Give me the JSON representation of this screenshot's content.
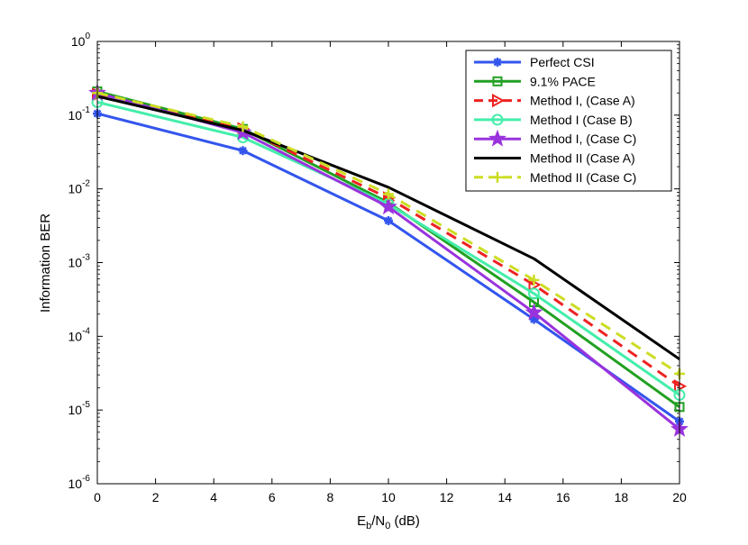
{
  "chart_data": {
    "type": "line",
    "title": "",
    "xlabel": {
      "base": "E",
      "sub1": "b",
      "mid": "/N",
      "sub2": "0",
      "tail": " (dB)"
    },
    "ylabel": "Information BER",
    "xlim": [
      0,
      20
    ],
    "ylim_log10": [
      -6,
      0
    ],
    "yscale": "log",
    "grid": false,
    "x_ticks": [
      0,
      2,
      4,
      6,
      8,
      10,
      12,
      14,
      16,
      18,
      20
    ],
    "y_ticks": [
      {
        "base": "10",
        "exp": "0"
      },
      {
        "base": "10",
        "exp": "-1"
      },
      {
        "base": "10",
        "exp": "-2"
      },
      {
        "base": "10",
        "exp": "-3"
      },
      {
        "base": "10",
        "exp": "-4"
      },
      {
        "base": "10",
        "exp": "-5"
      },
      {
        "base": "10",
        "exp": "-6"
      }
    ],
    "legend_position": "top-right",
    "series": [
      {
        "name": "Perfect CSI",
        "color": "#3355ee",
        "dash": "solid",
        "marker": "asterisk",
        "x": [
          0,
          5,
          10,
          15,
          20
        ],
        "y": [
          0.105,
          0.033,
          0.0037,
          0.00017,
          7e-06
        ]
      },
      {
        "name": "9.1% PACE",
        "color": "#22a022",
        "dash": "solid",
        "marker": "square",
        "x": [
          0,
          5,
          10,
          15,
          20
        ],
        "y": [
          0.21,
          0.065,
          0.0065,
          0.00029,
          1.1e-05
        ]
      },
      {
        "name": "Method I, (Case A)",
        "color": "#ee2222",
        "dash": "dashed",
        "marker": "triangle-right",
        "x": [
          0,
          5,
          10,
          15,
          20
        ],
        "y": [
          0.19,
          0.065,
          0.0075,
          0.0005,
          2.1e-05
        ]
      },
      {
        "name": "Method I (Case B)",
        "color": "#44eeaa",
        "dash": "solid",
        "marker": "circle",
        "x": [
          0,
          5,
          10,
          15,
          20
        ],
        "y": [
          0.15,
          0.05,
          0.0062,
          0.00038,
          1.6e-05
        ]
      },
      {
        "name": "Method I, (Case C)",
        "color": "#9933dd",
        "dash": "solid",
        "marker": "star",
        "x": [
          0,
          5,
          10,
          15,
          20
        ],
        "y": [
          0.2,
          0.058,
          0.0057,
          0.00021,
          5.5e-06
        ]
      },
      {
        "name": "Method II (Case A)",
        "color": "#000000",
        "dash": "solid",
        "marker": "none",
        "x": [
          0,
          5,
          10,
          15,
          20
        ],
        "y": [
          0.18,
          0.062,
          0.0105,
          0.00113,
          4.9e-05
        ]
      },
      {
        "name": "Method II (Case C)",
        "color": "#ccdd22",
        "dash": "dashed",
        "marker": "plus",
        "x": [
          0,
          5,
          10,
          15,
          20
        ],
        "y": [
          0.2,
          0.07,
          0.0085,
          0.00058,
          3.1e-05
        ]
      }
    ]
  }
}
